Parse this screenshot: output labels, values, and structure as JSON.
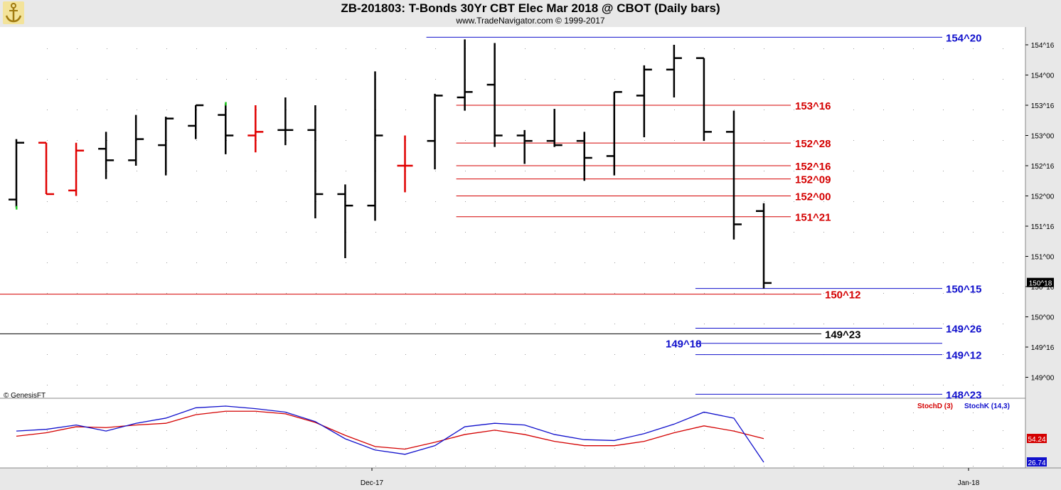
{
  "header": {
    "title": "ZB-201803:  T-Bonds 30Yr CBT Elec Mar 2018 @ CBOT  (Daily bars)",
    "copyright": "www.TradeNavigator.com © 1999-2017"
  },
  "watermark": "© GenesisFT",
  "colors": {
    "up": "#000000",
    "down": "#e00000",
    "level_red": "#d40000",
    "level_blue": "#1010cc",
    "level_black": "#000000",
    "stochD": "#d40000",
    "stochK": "#1010cc",
    "green": "#22cc22"
  },
  "chart_data": [
    {
      "type": "bar",
      "subtype": "ohlc",
      "title": "ZB-201803:  T-Bonds 30Yr CBT Elec Mar 2018 @ CBOT  (Daily bars)",
      "y_unit": "price in 32nds",
      "ylim": [
        148.375,
        154.625
      ],
      "y_ticks": [
        "154^16",
        "154^00",
        "153^16",
        "153^00",
        "152^16",
        "152^00",
        "151^16",
        "151^00",
        "150^16",
        "150^00",
        "149^16",
        "149^00"
      ],
      "x_ticks": [
        "Dec-17",
        "Jan-18"
      ],
      "last_price": "150^18",
      "bars": [
        {
          "o": 151.94,
          "h": 152.94,
          "l": 151.81,
          "c": 152.88,
          "color": "up"
        },
        {
          "o": 152.88,
          "h": 152.88,
          "l": 152.03,
          "c": 152.03,
          "color": "down"
        },
        {
          "o": 152.09,
          "h": 152.88,
          "l": 152.0,
          "c": 152.75,
          "color": "down"
        },
        {
          "o": 152.78,
          "h": 153.06,
          "l": 152.28,
          "c": 152.59,
          "color": "up"
        },
        {
          "o": 152.59,
          "h": 153.34,
          "l": 152.5,
          "c": 152.94,
          "color": "up"
        },
        {
          "o": 152.84,
          "h": 153.31,
          "l": 152.34,
          "c": 153.28,
          "color": "up"
        },
        {
          "o": 153.16,
          "h": 153.5,
          "l": 152.94,
          "c": 153.5,
          "color": "up"
        },
        {
          "o": 153.34,
          "h": 153.53,
          "l": 152.69,
          "c": 153.0,
          "color": "up"
        },
        {
          "o": 153.0,
          "h": 153.5,
          "l": 152.72,
          "c": 153.06,
          "color": "down"
        },
        {
          "o": 153.09,
          "h": 153.63,
          "l": 152.84,
          "c": 153.09,
          "color": "up"
        },
        {
          "o": 153.09,
          "h": 153.5,
          "l": 151.63,
          "c": 152.03,
          "color": "up"
        },
        {
          "o": 152.03,
          "h": 152.19,
          "l": 150.97,
          "c": 151.84,
          "color": "up"
        },
        {
          "o": 151.84,
          "h": 154.06,
          "l": 151.59,
          "c": 153.0,
          "color": "up"
        },
        {
          "o": 152.5,
          "h": 153.0,
          "l": 152.06,
          "c": 152.5,
          "color": "down"
        },
        {
          "o": 152.91,
          "h": 153.69,
          "l": 152.44,
          "c": 153.66,
          "color": "up"
        },
        {
          "o": 153.63,
          "h": 154.59,
          "l": 153.41,
          "c": 153.72,
          "color": "up"
        },
        {
          "o": 153.84,
          "h": 154.53,
          "l": 152.81,
          "c": 153.0,
          "color": "up"
        },
        {
          "o": 153.0,
          "h": 153.09,
          "l": 152.53,
          "c": 152.91,
          "color": "up"
        },
        {
          "o": 152.91,
          "h": 153.44,
          "l": 152.81,
          "c": 152.84,
          "color": "up"
        },
        {
          "o": 152.91,
          "h": 153.06,
          "l": 152.25,
          "c": 152.63,
          "color": "up"
        },
        {
          "o": 152.66,
          "h": 153.72,
          "l": 152.34,
          "c": 153.72,
          "color": "up"
        },
        {
          "o": 153.66,
          "h": 154.16,
          "l": 152.97,
          "c": 154.09,
          "color": "up"
        },
        {
          "o": 154.09,
          "h": 154.5,
          "l": 153.63,
          "c": 154.28,
          "color": "up"
        },
        {
          "o": 154.28,
          "h": 154.28,
          "l": 152.91,
          "c": 153.06,
          "color": "up"
        },
        {
          "o": 153.06,
          "h": 153.41,
          "l": 151.28,
          "c": 151.53,
          "color": "up"
        },
        {
          "o": 151.75,
          "h": 151.88,
          "l": 150.47,
          "c": 150.56,
          "color": "up"
        }
      ],
      "levels": [
        {
          "label": "154^20",
          "value": 154.625,
          "color": "level_blue",
          "x_from_bar": 14,
          "x_to": 1325,
          "label_x": 1330
        },
        {
          "label": "153^16",
          "value": 153.5,
          "color": "level_red",
          "x_from_bar": 15,
          "x_to": 1112,
          "label_x": 1118
        },
        {
          "label": "152^28",
          "value": 152.875,
          "color": "level_red",
          "x_from_bar": 15,
          "x_to": 1112,
          "label_x": 1118
        },
        {
          "label": "152^16",
          "value": 152.5,
          "color": "level_red",
          "x_from_bar": 15,
          "x_to": 1112,
          "label_x": 1118
        },
        {
          "label": "152^09",
          "value": 152.28125,
          "color": "level_red",
          "x_from_bar": 15,
          "x_to": 1112,
          "label_x": 1118
        },
        {
          "label": "152^00",
          "value": 152.0,
          "color": "level_red",
          "x_from_bar": 15,
          "x_to": 1112,
          "label_x": 1118
        },
        {
          "label": "151^21",
          "value": 151.65625,
          "color": "level_red",
          "x_from_bar": 15,
          "x_to": 1112,
          "label_x": 1118
        },
        {
          "label": "150^15",
          "value": 150.46875,
          "color": "level_blue",
          "x_from_bar": 23,
          "x_to": 1325,
          "label_x": 1330
        },
        {
          "label": "150^12",
          "value": 150.375,
          "color": "level_red",
          "x_from_bar": -1,
          "x_to": 1155,
          "label_x": 1160
        },
        {
          "label": "149^26",
          "value": 149.8125,
          "color": "level_blue",
          "x_from_bar": 23,
          "x_to": 1325,
          "label_x": 1330
        },
        {
          "label": "149^23",
          "value": 149.71875,
          "color": "level_black",
          "x_from_bar": -1,
          "x_to": 1155,
          "label_x": 1160
        },
        {
          "label": "149^18",
          "value": 149.5625,
          "color": "level_blue",
          "x_from_bar": 23,
          "x_to": 1325,
          "label_x": 936
        },
        {
          "label": "149^12",
          "value": 149.375,
          "color": "level_blue",
          "x_from_bar": 23,
          "x_to": 1325,
          "label_x": 1330
        },
        {
          "label": "148^23",
          "value": 148.71875,
          "color": "level_blue",
          "x_from_bar": 23,
          "x_to": 1325,
          "label_x": 1330
        }
      ]
    },
    {
      "type": "line",
      "title": "",
      "ylim": [
        0,
        100
      ],
      "series": [
        {
          "name": "StochD (3)",
          "color": "stochD",
          "last": "54.24",
          "values": [
            57,
            61,
            68,
            67,
            70,
            72,
            82,
            86,
            86,
            83,
            73,
            58,
            45,
            42,
            50,
            59,
            64,
            59,
            51,
            46,
            46,
            51,
            61,
            69,
            63,
            54.24
          ]
        },
        {
          "name": "StochK (14,3)",
          "color": "stochK",
          "last": "26.74",
          "values": [
            63,
            65,
            70,
            63,
            72,
            78,
            90,
            92,
            89,
            85,
            74,
            54,
            41,
            36,
            46,
            68,
            72,
            70,
            59,
            53,
            52,
            60,
            71,
            85,
            78,
            26.74
          ]
        }
      ]
    }
  ]
}
